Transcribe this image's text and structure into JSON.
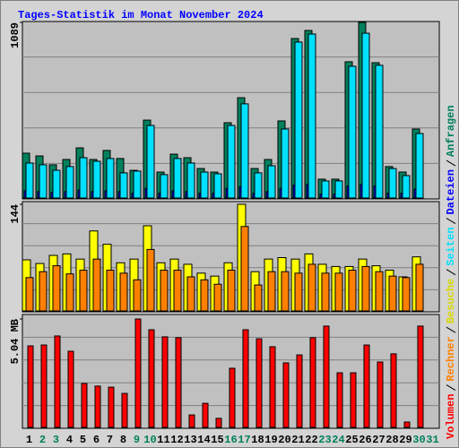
{
  "chart_data": [
    {
      "type": "bar",
      "title": "Tages-Statistik im Monat November 2024",
      "categories": [
        "1",
        "2",
        "3",
        "4",
        "5",
        "6",
        "7",
        "8",
        "9",
        "10",
        "11",
        "12",
        "13",
        "14",
        "15",
        "16",
        "17",
        "18",
        "19",
        "20",
        "21",
        "22",
        "23",
        "24",
        "25",
        "26",
        "27",
        "28",
        "29",
        "30",
        "31"
      ],
      "category_colors": [
        "#000000",
        "#00805c",
        "#00805c",
        "#000000",
        "#000000",
        "#000000",
        "#000000",
        "#000000",
        "#00805c",
        "#00805c",
        "#000000",
        "#000000",
        "#000000",
        "#000000",
        "#000000",
        "#00805c",
        "#00805c",
        "#000000",
        "#000000",
        "#000000",
        "#000000",
        "#000000",
        "#00805c",
        "#00805c",
        "#000000",
        "#000000",
        "#000000",
        "#000000",
        "#000000",
        "#00805c",
        "#00805c"
      ],
      "ylim": [
        0,
        1089
      ],
      "yticks": [
        1089
      ],
      "series": [
        {
          "name": "Anfragen",
          "color": "#00805c",
          "values": [
            278,
            261,
            206,
            239,
            311,
            239,
            295,
            245,
            172,
            483,
            161,
            272,
            250,
            183,
            161,
            467,
            622,
            183,
            239,
            478,
            989,
            1039,
            117,
            117,
            845,
            1089,
            839,
            195,
            161,
            428,
            null
          ]
        },
        {
          "name": "Dateien",
          "color": "#0000ff",
          "values": [
            45,
            40,
            35,
            40,
            50,
            40,
            45,
            40,
            30,
            60,
            30,
            45,
            40,
            30,
            30,
            60,
            70,
            30,
            40,
            60,
            80,
            85,
            25,
            25,
            75,
            85,
            75,
            30,
            30,
            55,
            null
          ]
        },
        {
          "name": "Seiten",
          "color": "#00e0ff",
          "values": [
            217,
            206,
            172,
            195,
            250,
            228,
            245,
            156,
            167,
            450,
            145,
            245,
            217,
            161,
            150,
            450,
            584,
            156,
            200,
            428,
            967,
            1017,
            106,
            106,
            817,
            1022,
            823,
            183,
            139,
            400,
            null
          ]
        }
      ]
    },
    {
      "type": "bar",
      "ylim": [
        0,
        144
      ],
      "yticks": [
        144
      ],
      "series": [
        {
          "name": "Besuche",
          "color": "#ffff00",
          "values": [
            69,
            64,
            75,
            77,
            70,
            108,
            90,
            65,
            70,
            115,
            65,
            70,
            63,
            51,
            47,
            65,
            144,
            53,
            70,
            72,
            70,
            77,
            63,
            60,
            60,
            70,
            61,
            55,
            46,
            73,
            null
          ]
        },
        {
          "name": "Rechner",
          "color": "#ff8000",
          "values": [
            45,
            53,
            61,
            50,
            55,
            70,
            55,
            51,
            42,
            83,
            55,
            55,
            46,
            42,
            36,
            55,
            114,
            35,
            53,
            53,
            51,
            63,
            51,
            51,
            55,
            60,
            53,
            47,
            45,
            63,
            null
          ]
        }
      ]
    },
    {
      "type": "bar",
      "ylim": [
        0,
        5.04
      ],
      "yticks": [
        {
          "value": 5.04,
          "label": "5.04 MB"
        }
      ],
      "series": [
        {
          "name": "Volumen",
          "color": "#ff0000",
          "values": [
            3.79,
            3.83,
            4.25,
            3.54,
            2.04,
            1.92,
            1.87,
            1.58,
            5.04,
            4.54,
            4.21,
            4.17,
            0.58,
            1.12,
            0.42,
            2.75,
            4.54,
            4.12,
            3.75,
            3.0,
            3.37,
            4.17,
            4.71,
            2.54,
            2.54,
            3.83,
            3.04,
            3.42,
            0.25,
            4.71,
            null
          ]
        }
      ]
    }
  ]
}
